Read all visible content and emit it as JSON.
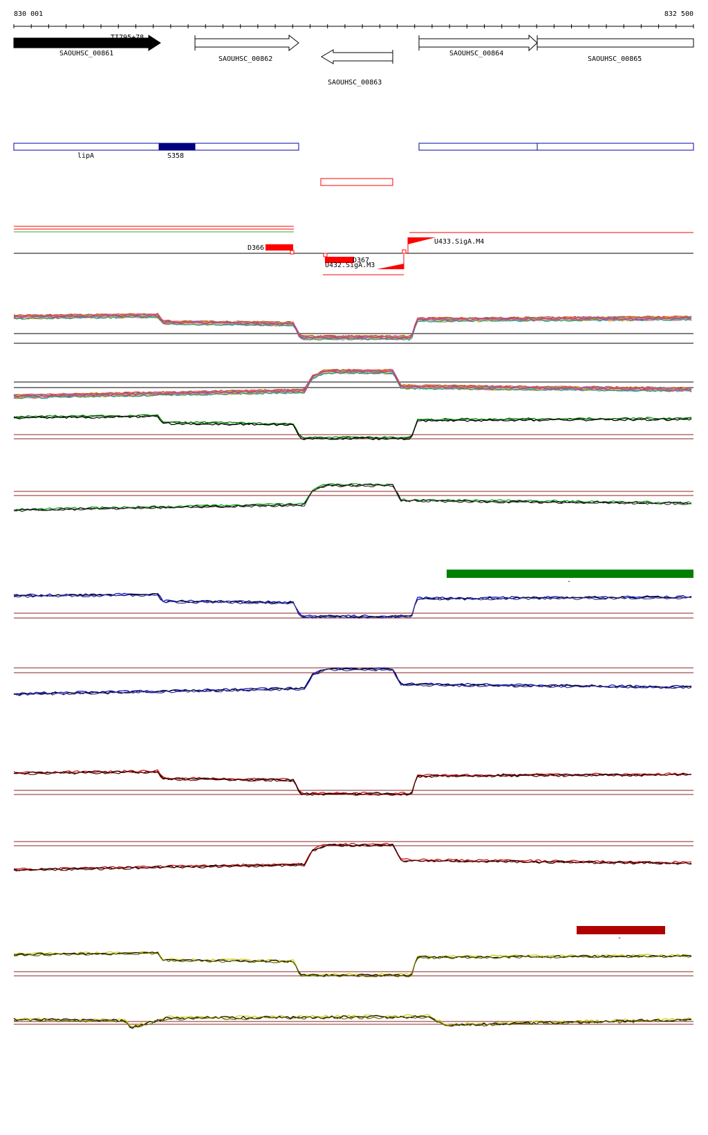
{
  "axis": {
    "start_label": "830 001",
    "end_label": "832 500",
    "start": 830001,
    "end": 832500
  },
  "genes": [
    {
      "id": "SAOUHSC_00861",
      "label": "SAOUHSC_00861",
      "strand": "+",
      "filled": true
    },
    {
      "id": "SAOUHSC_00862",
      "label": "SAOUHSC_00862",
      "strand": "+",
      "filled": false
    },
    {
      "id": "SAOUHSC_00863",
      "label": "SAOUHSC_00863",
      "strand": "-",
      "filled": false
    },
    {
      "id": "SAOUHSC_00864",
      "label": "SAOUHSC_00864",
      "strand": "+",
      "filled": false
    },
    {
      "id": "SAOUHSC_00865",
      "label": "SAOUHSC_00865",
      "strand": "+",
      "filled": false
    }
  ],
  "gene_overlay_label": "TI795+78",
  "annotations": [
    {
      "id": "lipA",
      "label": "lipA"
    },
    {
      "id": "S358",
      "label": "S358"
    }
  ],
  "transcripts": [
    {
      "id": "D366",
      "label": "D366"
    },
    {
      "id": "D367",
      "label": "D367"
    },
    {
      "id": "U432",
      "label": "U432.SigA.M3"
    },
    {
      "id": "U433",
      "label": "U433.SigA.M4"
    }
  ],
  "highlight_marks": [
    "-",
    "-"
  ],
  "colors": {
    "gene_fill": "#000000",
    "annotation": "#0000aa",
    "annotation_fill": "#000080",
    "transcript": "#ff0000",
    "track_green": "#008000",
    "track_blue": "#0000cc",
    "track_red": "#d00000",
    "track_yellow": "#cccc00",
    "threshold": "#8b2020",
    "highlight_green": "#008000",
    "highlight_red": "#b00000"
  }
}
